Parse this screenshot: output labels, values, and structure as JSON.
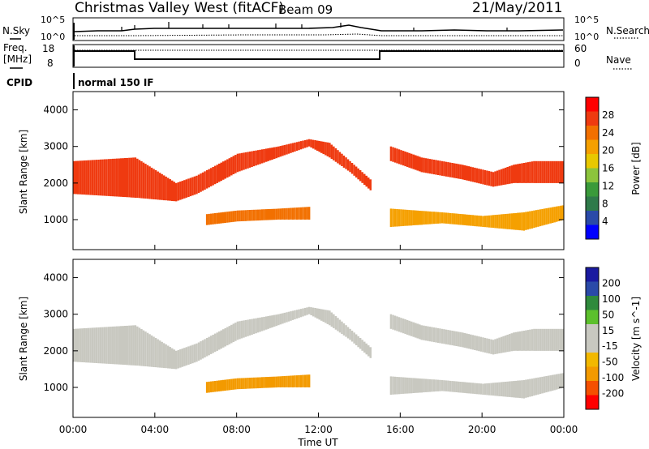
{
  "header": {
    "title": "Christmas Valley West (fitACF)",
    "beam": "Beam 09",
    "date": "21/May/2011"
  },
  "strips": {
    "nsky_label": "N.Sky",
    "nsearch_label": "N.Search",
    "noise_top_tick": "10^5",
    "noise_bottom_tick": "10^0",
    "freq_label_1": "Freq.",
    "freq_label_2": "[MHz]",
    "freq_ticks": [
      "18",
      "8"
    ],
    "nave_label": "Nave",
    "nave_ticks": [
      "60",
      "0"
    ],
    "cpid_label": "CPID",
    "cpid_value": "normal 150 IF"
  },
  "colors": {
    "power": [
      "#0000ff",
      "#2a4aa8",
      "#2f7a4a",
      "#3a9a3a",
      "#8cc43c",
      "#e8c800",
      "#f5a000",
      "#f27000",
      "#ef3a10",
      "#ff0000"
    ],
    "velocity": [
      "#ff0000",
      "#f55000",
      "#f39a00",
      "#f2b800",
      "#c8c8c0",
      "#c8c8c0",
      "#5cc02c",
      "#2f8a3c",
      "#2a4aa8",
      "#1a1aa0"
    ],
    "axis": "#000000"
  },
  "chart_data": [
    {
      "type": "heatmap",
      "name": "power",
      "ylabel": "Slant Range [km]",
      "ylim": [
        180,
        4500
      ],
      "yticks": [
        "1000",
        "2000",
        "3000",
        "4000"
      ],
      "xlim": [
        0,
        24
      ],
      "colorbar": {
        "label": "Power [dB]",
        "ticks": [
          "4",
          "8",
          "12",
          "16",
          "20",
          "24",
          "28"
        ]
      },
      "bands": [
        {
          "t": [
            0,
            3,
            5,
            6,
            8,
            10,
            11.5,
            12.5,
            13.5,
            14.5
          ],
          "lower": [
            1700,
            1600,
            1500,
            1700,
            2300,
            2700,
            3000,
            2700,
            2300,
            1800
          ],
          "upper": [
            2600,
            2700,
            2000,
            2200,
            2800,
            3000,
            3200,
            3100,
            2600,
            2100
          ],
          "level": 8
        },
        {
          "t": [
            15.5,
            17,
            19,
            20.5,
            21.5,
            22.5,
            24
          ],
          "lower": [
            2600,
            2300,
            2100,
            1900,
            2000,
            2000,
            2000
          ],
          "upper": [
            3000,
            2700,
            2500,
            2300,
            2500,
            2600,
            2600
          ],
          "level": 8
        },
        {
          "t": [
            6.5,
            8,
            10,
            11.5
          ],
          "lower": [
            850,
            950,
            1000,
            1000
          ],
          "upper": [
            1150,
            1250,
            1300,
            1350
          ],
          "level": 7
        },
        {
          "t": [
            15.5,
            18,
            20,
            22,
            24
          ],
          "lower": [
            800,
            900,
            800,
            700,
            1000
          ],
          "upper": [
            1300,
            1200,
            1100,
            1200,
            1400
          ],
          "level": 6
        }
      ]
    },
    {
      "type": "heatmap",
      "name": "velocity",
      "ylabel": "Slant Range [km]",
      "ylim": [
        180,
        4500
      ],
      "yticks": [
        "1000",
        "2000",
        "3000",
        "4000"
      ],
      "xlabel": "Time UT",
      "xticks": [
        "00:00",
        "04:00",
        "08:00",
        "12:00",
        "16:00",
        "20:00",
        "00:00"
      ],
      "xlim": [
        0,
        24
      ],
      "colorbar": {
        "label": "Velocity [m s^-1]",
        "ticks": [
          "200",
          "100",
          "50",
          "15",
          "-15",
          "-50",
          "-100",
          "-200"
        ]
      },
      "bands": [
        {
          "t": [
            0,
            3,
            5,
            6,
            8,
            10,
            11.5,
            12.5,
            13.5,
            14.5
          ],
          "lower": [
            1700,
            1600,
            1500,
            1700,
            2300,
            2700,
            3000,
            2700,
            2300,
            1800
          ],
          "upper": [
            2600,
            2700,
            2000,
            2200,
            2800,
            3000,
            3200,
            3100,
            2600,
            2100
          ],
          "level": 4
        },
        {
          "t": [
            15.5,
            17,
            19,
            20.5,
            21.5,
            22.5,
            24
          ],
          "lower": [
            2600,
            2300,
            2100,
            1900,
            2000,
            2000,
            2000
          ],
          "upper": [
            3000,
            2700,
            2500,
            2300,
            2500,
            2600,
            2600
          ],
          "level": 4
        },
        {
          "t": [
            6.5,
            8,
            10,
            11.5
          ],
          "lower": [
            850,
            950,
            1000,
            1000
          ],
          "upper": [
            1150,
            1250,
            1300,
            1350
          ],
          "level": 2
        },
        {
          "t": [
            15.5,
            18,
            20,
            22,
            24
          ],
          "lower": [
            800,
            900,
            800,
            700,
            1000
          ],
          "upper": [
            1300,
            1200,
            1100,
            1200,
            1400
          ],
          "level": 4
        }
      ]
    }
  ]
}
